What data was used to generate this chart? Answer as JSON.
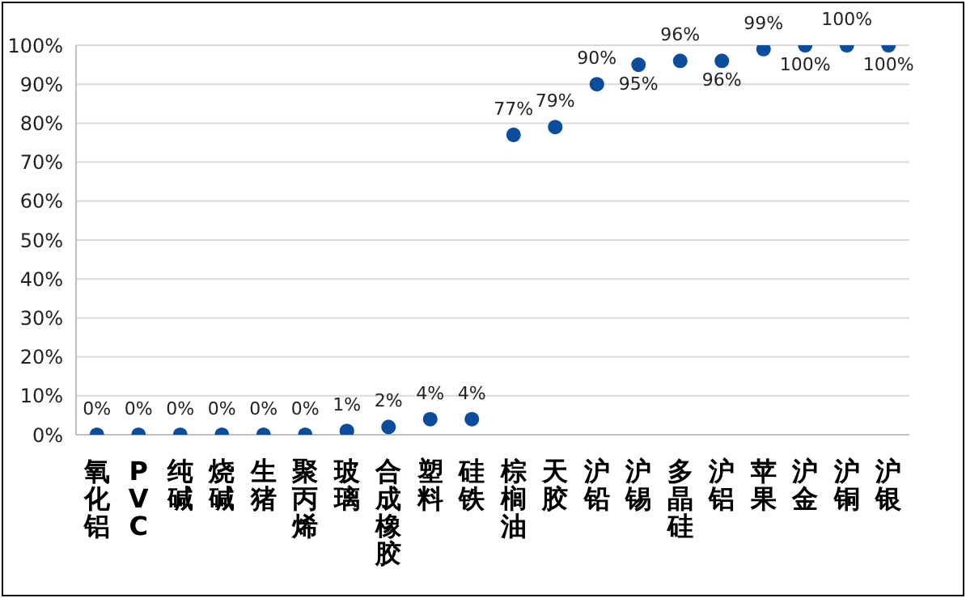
{
  "chart_data": {
    "type": "scatter",
    "categories": [
      "氧化铝",
      "PVC",
      "纯碱",
      "烧碱",
      "生猪",
      "聚丙烯",
      "玻璃",
      "合成橡胶",
      "塑料",
      "硅铁",
      "棕榈油",
      "天胶",
      "沪铅",
      "沪锡",
      "多晶硅",
      "沪铝",
      "苹果",
      "沪金",
      "沪铜",
      "沪银"
    ],
    "values": [
      0,
      0,
      0,
      0,
      0,
      0,
      1,
      2,
      4,
      4,
      77,
      79,
      90,
      95,
      96,
      96,
      99,
      100,
      100,
      100
    ],
    "value_labels": [
      "0%",
      "0%",
      "0%",
      "0%",
      "0%",
      "0%",
      "1%",
      "2%",
      "4%",
      "4%",
      "77%",
      "79%",
      "90%",
      "95%",
      "96%",
      "96%",
      "99%",
      "100%",
      "100%",
      "100%"
    ],
    "color": "#0b4c9c",
    "marker": "circle",
    "ylim": [
      0,
      100
    ],
    "yticks": [
      {
        "value": 0,
        "label": "0%"
      },
      {
        "value": 10,
        "label": "10%"
      },
      {
        "value": 20,
        "label": "20%"
      },
      {
        "value": 30,
        "label": "30%"
      },
      {
        "value": 40,
        "label": "40%"
      },
      {
        "value": 50,
        "label": "50%"
      },
      {
        "value": 60,
        "label": "60%"
      },
      {
        "value": 70,
        "label": "70%"
      },
      {
        "value": 80,
        "label": "80%"
      },
      {
        "value": 90,
        "label": "90%"
      },
      {
        "value": 100,
        "label": "100%"
      }
    ],
    "grid": "y"
  }
}
